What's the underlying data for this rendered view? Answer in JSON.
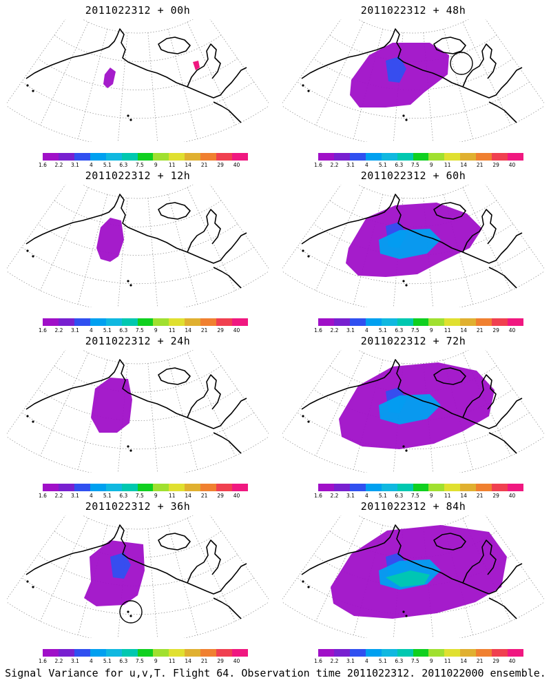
{
  "caption": "Signal Variance for u,v,T. Flight 64. Observation time 2011022312. 2011022000 ensemble.",
  "colorbar": {
    "labels": [
      "1.6",
      "2.2",
      "3.1",
      "4",
      "5.1",
      "6.3",
      "7.5",
      "9",
      "11",
      "14",
      "21",
      "29",
      "40"
    ],
    "colors": [
      "#a010c8",
      "#7820d0",
      "#3050f0",
      "#00a0f0",
      "#10b8e0",
      "#00c8b0",
      "#10d020",
      "#a0e030",
      "#e0e030",
      "#e0b030",
      "#f08030",
      "#f04050",
      "#f01880"
    ]
  },
  "panels": [
    {
      "title": "2011022312 + 00h",
      "spread": 0,
      "circle": false
    },
    {
      "title": "2011022312 + 48h",
      "spread": 4,
      "circle": true
    },
    {
      "title": "2011022312 + 12h",
      "spread": 1,
      "circle": false
    },
    {
      "title": "2011022312 + 60h",
      "spread": 5,
      "circle": false
    },
    {
      "title": "2011022312 + 24h",
      "spread": 2,
      "circle": false
    },
    {
      "title": "2011022312 + 72h",
      "spread": 6,
      "circle": false
    },
    {
      "title": "2011022312 + 36h",
      "spread": 3,
      "circle": true
    },
    {
      "title": "2011022312 + 84h",
      "spread": 7,
      "circle": false
    }
  ]
}
